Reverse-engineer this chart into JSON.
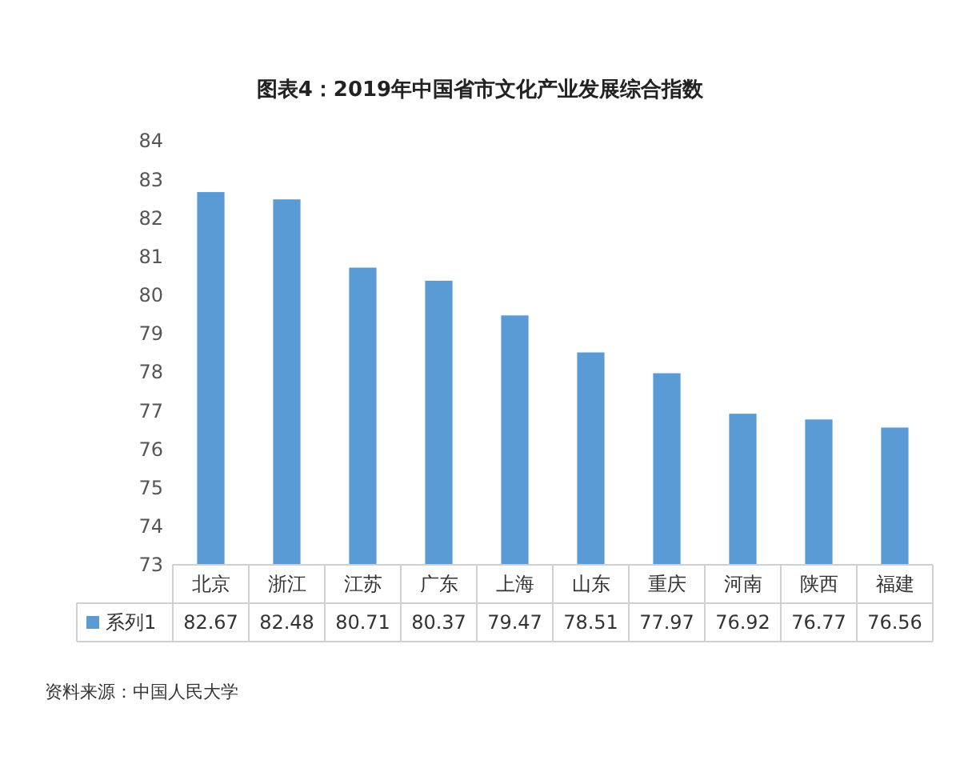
{
  "chart_data": {
    "type": "bar",
    "title": "图表4：2019年中国省市文化产业发展综合指数",
    "categories": [
      "北京",
      "浙江",
      "江苏",
      "广东",
      "上海",
      "山东",
      "重庆",
      "河南",
      "陕西",
      "福建"
    ],
    "series": [
      {
        "name": "系列1",
        "color": "#5b9bd5",
        "values": [
          82.67,
          82.48,
          80.71,
          80.37,
          79.47,
          78.51,
          77.97,
          76.92,
          76.77,
          76.56
        ]
      }
    ],
    "ylim": [
      73,
      84
    ],
    "yticks": [
      73,
      74,
      75,
      76,
      77,
      78,
      79,
      80,
      81,
      82,
      83,
      84
    ],
    "data_labels": true,
    "legend": "bottom",
    "annotations": [
      "资料来源：中国人民大学"
    ]
  }
}
